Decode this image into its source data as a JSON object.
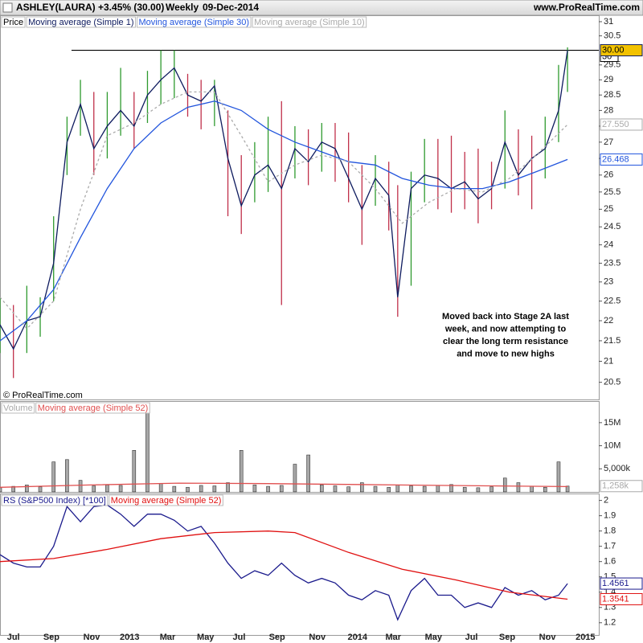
{
  "header": {
    "symbol": "ASHLEY(LAURA)",
    "change": "+3.45% (30.00)",
    "period": "Weekly",
    "date": "09-Dec-2014",
    "site": "www.ProRealTime.com"
  },
  "chart_data": [
    {
      "type": "stock",
      "log": true,
      "xlim": [
        0,
        134
      ],
      "ylim": [
        20.1,
        31.2
      ],
      "yticks": [
        20.5,
        21,
        21.5,
        22,
        22.5,
        23,
        23.5,
        24,
        24.5,
        25,
        25.5,
        26,
        26.5,
        27,
        27.5,
        28,
        28.5,
        29,
        29.5,
        30.5,
        31
      ],
      "copyright": "© ProRealTime.com",
      "annotation": [
        "Moved back into Stage 2A last",
        "week, and now attempting to",
        "clear the long term resistance",
        "and move to new highs"
      ],
      "hline": {
        "y": 30,
        "x": [
          16,
          134
        ],
        "color": "#000000"
      },
      "series": [
        {
          "name": "Price",
          "style": "hl",
          "color": "#000000",
          "x": [
            0,
            3,
            6,
            9,
            12,
            15,
            18,
            21,
            24,
            27,
            30,
            33,
            36,
            39,
            42,
            45,
            48,
            51,
            54,
            57,
            60,
            63,
            66,
            69,
            72,
            75,
            78,
            81,
            84,
            87,
            89,
            92,
            95,
            98,
            101,
            104,
            107,
            110,
            113,
            116,
            119,
            122,
            125,
            127
          ],
          "high": [
            22.6,
            22.4,
            22.9,
            22.6,
            24.8,
            27.8,
            29.0,
            28.6,
            28.6,
            29.4,
            28.6,
            29.3,
            30.0,
            30.0,
            29.2,
            29.0,
            29.0,
            28.0,
            26.6,
            27.0,
            27.8,
            28.3,
            27.5,
            27.4,
            27.6,
            27.6,
            27.3,
            26.3,
            26.6,
            26.4,
            25.7,
            26.1,
            27.1,
            27.1,
            27.2,
            26.7,
            26.8,
            26.4,
            28.0,
            27.4,
            27.2,
            27.8,
            29.5,
            30.1
          ],
          "low": [
            21.2,
            20.6,
            21.2,
            21.6,
            22.5,
            26.0,
            27.2,
            26.0,
            26.5,
            27.2,
            26.8,
            27.6,
            28.2,
            28.4,
            27.8,
            27.4,
            27.5,
            24.8,
            24.3,
            25.2,
            25.5,
            22.4,
            25.9,
            25.7,
            26.1,
            25.8,
            25.2,
            24.0,
            25.1,
            24.4,
            22.1,
            22.9,
            25.2,
            25.0,
            24.9,
            25.0,
            24.6,
            25.0,
            25.6,
            25.4,
            25.0,
            25.9,
            27.0,
            28.6
          ]
        },
        {
          "name": "Moving average (Simple 1)",
          "style": "line",
          "color": "#0d1a5e",
          "last_label": "30.00",
          "label_fill": "#f2c200",
          "x": [
            0,
            3,
            6,
            9,
            12,
            15,
            18,
            21,
            24,
            27,
            30,
            33,
            36,
            39,
            42,
            45,
            48,
            51,
            54,
            57,
            60,
            63,
            66,
            69,
            72,
            75,
            78,
            81,
            84,
            87,
            89,
            92,
            95,
            98,
            101,
            104,
            107,
            110,
            113,
            116,
            119,
            122,
            125,
            127
          ],
          "values": [
            21.9,
            21.3,
            22.0,
            22.1,
            23.5,
            27.0,
            28.2,
            26.8,
            27.5,
            28.0,
            27.5,
            28.5,
            29.0,
            29.4,
            28.5,
            28.3,
            28.8,
            26.5,
            25.1,
            26.0,
            26.3,
            25.6,
            26.8,
            26.4,
            27.0,
            26.8,
            25.9,
            25.0,
            25.9,
            25.4,
            22.6,
            25.6,
            26.0,
            25.9,
            25.6,
            25.8,
            25.3,
            25.6,
            27.0,
            26.0,
            26.5,
            26.8,
            28.0,
            30.0
          ]
        },
        {
          "name": "Moving average (Simple 30)",
          "style": "line",
          "color": "#2255dd",
          "last_label": "26.468",
          "x": [
            0,
            6,
            12,
            18,
            24,
            30,
            36,
            42,
            48,
            54,
            60,
            66,
            72,
            78,
            84,
            90,
            96,
            102,
            108,
            114,
            120,
            127
          ],
          "values": [
            21.5,
            22.0,
            22.8,
            24.2,
            25.6,
            26.8,
            27.6,
            28.1,
            28.3,
            28.0,
            27.4,
            27.0,
            26.7,
            26.4,
            26.3,
            25.9,
            25.7,
            25.6,
            25.6,
            25.8,
            26.1,
            26.468
          ]
        },
        {
          "name": "Moving average (Simple 10)",
          "style": "line",
          "dash": true,
          "color": "#aaaaaa",
          "last_label": "27.550",
          "x": [
            0,
            6,
            12,
            18,
            24,
            30,
            36,
            42,
            48,
            54,
            60,
            66,
            72,
            78,
            84,
            90,
            96,
            102,
            108,
            114,
            120,
            127
          ],
          "values": [
            22.6,
            21.8,
            22.5,
            25.0,
            27.2,
            27.6,
            28.2,
            28.6,
            28.6,
            27.2,
            25.8,
            26.3,
            26.6,
            26.4,
            25.6,
            24.6,
            25.2,
            25.6,
            25.5,
            25.9,
            26.6,
            27.55
          ]
        }
      ]
    },
    {
      "type": "bar",
      "xlim": [
        0,
        134
      ],
      "ylim": [
        0,
        19500000
      ],
      "yticks": [
        {
          "value": 5000000,
          "label": "5,000k"
        },
        {
          "value": 10000000,
          "label": "10M"
        },
        {
          "value": 15000000,
          "label": "15M"
        }
      ],
      "series": [
        {
          "name": "Volume",
          "style": "bar",
          "color": "#a8a8a8",
          "last_label": "1,258k",
          "x": [
            0,
            3,
            6,
            9,
            12,
            15,
            18,
            21,
            24,
            27,
            30,
            33,
            36,
            39,
            42,
            45,
            48,
            51,
            54,
            57,
            60,
            63,
            66,
            69,
            72,
            75,
            78,
            81,
            84,
            87,
            89,
            92,
            95,
            98,
            101,
            104,
            107,
            110,
            113,
            116,
            119,
            122,
            125,
            127
          ],
          "values": [
            900000,
            1200000,
            1500000,
            1100000,
            6500000,
            7000000,
            2500000,
            1300000,
            1500000,
            1400000,
            9000000,
            19000000,
            1800000,
            1200000,
            1000000,
            1400000,
            1300000,
            2000000,
            9000000,
            1500000,
            1200000,
            1400000,
            6000000,
            8000000,
            1500000,
            1300000,
            1100000,
            2000000,
            1200000,
            1000000,
            1500000,
            1300000,
            1200000,
            1400000,
            1600000,
            1000000,
            900000,
            1100000,
            3000000,
            2000000,
            1200000,
            1000000,
            6500000,
            1258000
          ]
        },
        {
          "name": "Moving average (Simple 52)",
          "style": "line",
          "color": "#e05050",
          "x": [
            0,
            20,
            40,
            60,
            80,
            100,
            127
          ],
          "values": [
            1000000,
            1500000,
            1900000,
            1800000,
            1600000,
            1400000,
            1150000
          ]
        }
      ]
    },
    {
      "type": "line",
      "xlim": [
        0,
        134
      ],
      "ylim": [
        1.12,
        2.04
      ],
      "yticks": [
        1.2,
        1.3,
        1.4,
        1.5,
        1.6,
        1.7,
        1.8,
        1.9,
        2
      ],
      "xticks": [
        {
          "value": 3,
          "label": "Jul"
        },
        {
          "value": 11.5,
          "label": "Sep"
        },
        {
          "value": 20.5,
          "label": "Nov"
        },
        {
          "value": 29,
          "label": "2013"
        },
        {
          "value": 37.5,
          "label": "Mar"
        },
        {
          "value": 46,
          "label": "May"
        },
        {
          "value": 53.5,
          "label": "Jul"
        },
        {
          "value": 62,
          "label": "Sep"
        },
        {
          "value": 71,
          "label": "Nov"
        },
        {
          "value": 80,
          "label": "2014"
        },
        {
          "value": 88,
          "label": "Mar"
        },
        {
          "value": 97,
          "label": "May"
        },
        {
          "value": 105.5,
          "label": "Jul"
        },
        {
          "value": 113.5,
          "label": "Sep"
        },
        {
          "value": 122.5,
          "label": "Nov"
        },
        {
          "value": 131,
          "label": "2015"
        }
      ],
      "series": [
        {
          "name": "RS (S&P500 Index) [*100]",
          "style": "line",
          "color": "#1a1a8c",
          "last_label": "1.4561",
          "x": [
            0,
            3,
            6,
            9,
            12,
            15,
            18,
            21,
            24,
            27,
            30,
            33,
            36,
            39,
            42,
            45,
            48,
            51,
            54,
            57,
            60,
            63,
            66,
            69,
            72,
            75,
            78,
            81,
            84,
            87,
            89,
            92,
            95,
            98,
            101,
            104,
            107,
            110,
            113,
            116,
            119,
            122,
            125,
            127
          ],
          "values": [
            1.645,
            1.59,
            1.565,
            1.565,
            1.7,
            1.96,
            1.86,
            1.96,
            1.97,
            1.91,
            1.83,
            1.91,
            1.91,
            1.87,
            1.8,
            1.83,
            1.72,
            1.59,
            1.49,
            1.54,
            1.51,
            1.59,
            1.51,
            1.46,
            1.49,
            1.46,
            1.38,
            1.35,
            1.41,
            1.38,
            1.22,
            1.41,
            1.49,
            1.38,
            1.38,
            1.3,
            1.33,
            1.3,
            1.43,
            1.38,
            1.41,
            1.35,
            1.38,
            1.4561
          ]
        },
        {
          "name": "Moving average (Simple 52)",
          "style": "line",
          "color": "#e01010",
          "last_label": "1.3541",
          "x": [
            0,
            12,
            24,
            36,
            48,
            60,
            66,
            78,
            90,
            102,
            114,
            127
          ],
          "values": [
            1.6,
            1.62,
            1.68,
            1.75,
            1.79,
            1.8,
            1.79,
            1.66,
            1.55,
            1.48,
            1.4,
            1.3541
          ]
        }
      ]
    }
  ]
}
